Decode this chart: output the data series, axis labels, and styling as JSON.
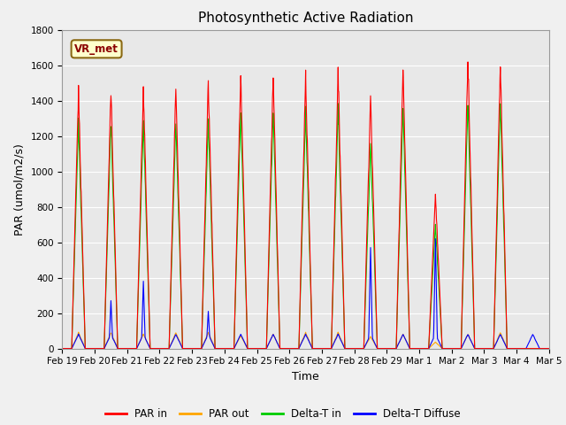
{
  "title": "Photosynthetic Active Radiation",
  "ylabel": "PAR (umol/m2/s)",
  "xlabel": "Time",
  "ylim": [
    0,
    1800
  ],
  "yticks": [
    0,
    200,
    400,
    600,
    800,
    1000,
    1200,
    1400,
    1600,
    1800
  ],
  "colors": {
    "PAR_in": "#ff0000",
    "PAR_out": "#ffa500",
    "Delta_T_in": "#00cc00",
    "Delta_T_Diffuse": "#0000ff"
  },
  "legend_labels": [
    "PAR in",
    "PAR out",
    "Delta-T in",
    "Delta-T Diffuse"
  ],
  "annotation_text": "VR_met",
  "background_color": "#f0f0f0",
  "plot_bg_color": "#e8e8e8",
  "grid_color": "#ffffff",
  "tick_labels": [
    "Feb 19",
    "Feb 20",
    "Feb 21",
    "Feb 22",
    "Feb 23",
    "Feb 24",
    "Feb 25",
    "Feb 26",
    "Feb 27",
    "Feb 28",
    "Feb 29",
    "Mar 1",
    "Mar 2",
    "Mar 3",
    "Mar 4",
    "Mar 5"
  ],
  "line_width": 0.8,
  "par_in_peaks": [
    1450,
    1470,
    1470,
    1490,
    1510,
    1540,
    1540,
    1540,
    1550,
    1430,
    1590,
    870,
    1650,
    1610,
    0
  ],
  "par_out_peaks": [
    100,
    100,
    90,
    100,
    100,
    80,
    90,
    100,
    100,
    75,
    90,
    40,
    90,
    100,
    0
  ],
  "delta_t_peaks": [
    1270,
    1290,
    1280,
    1290,
    1295,
    1330,
    1340,
    1340,
    1350,
    1160,
    1370,
    700,
    1400,
    1400,
    0
  ],
  "diffuse_base": 80,
  "diffuse_spikes": {
    "1": 270,
    "2": 380,
    "4": 210,
    "9": 570,
    "11": 620
  },
  "n_days": 15,
  "dt_minutes": 15,
  "figsize": [
    6.4,
    4.8
  ],
  "dpi": 100
}
